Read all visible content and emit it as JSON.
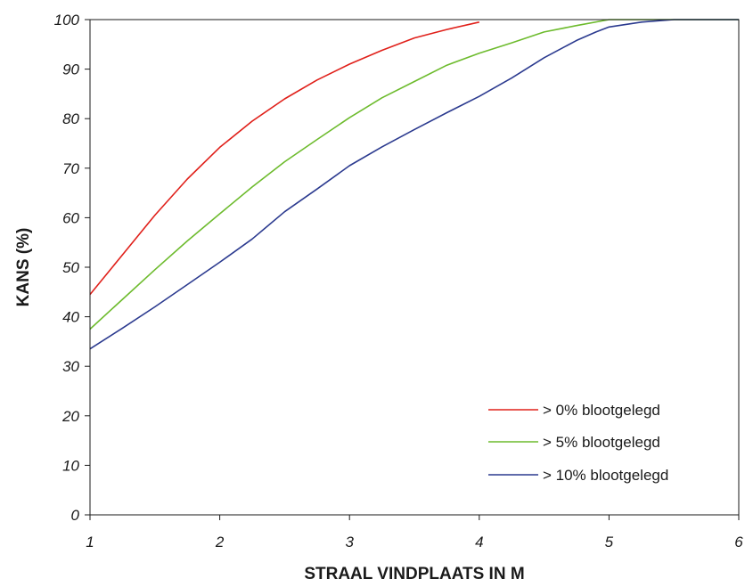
{
  "chart_data": {
    "type": "line",
    "title": "",
    "xlabel": "STRAAL VINDPLAATS IN M",
    "ylabel": "KANS (%)",
    "xlim": [
      1,
      6
    ],
    "ylim": [
      0,
      100
    ],
    "xticks": [
      1,
      2,
      3,
      4,
      5,
      6
    ],
    "yticks": [
      0,
      10,
      20,
      30,
      40,
      50,
      60,
      70,
      80,
      90,
      100
    ],
    "grid": false,
    "legend_position": "bottom-right",
    "series": [
      {
        "name": "> 0% blootgelegd",
        "color": "#e0201a",
        "points": [
          [
            1,
            44.5
          ],
          [
            1.25,
            52.5
          ],
          [
            1.5,
            60.5
          ],
          [
            1.75,
            67.8
          ],
          [
            2,
            74.2
          ],
          [
            2.25,
            79.5
          ],
          [
            2.5,
            84
          ],
          [
            2.75,
            87.8
          ],
          [
            3,
            91
          ],
          [
            3.25,
            93.8
          ],
          [
            3.5,
            96.3
          ],
          [
            3.75,
            98
          ],
          [
            4,
            99.5
          ]
        ]
      },
      {
        "name": "> 5% blootgelegd",
        "color": "#6dbb2d",
        "points": [
          [
            1,
            37.5
          ],
          [
            1.25,
            43.5
          ],
          [
            1.5,
            49.5
          ],
          [
            1.75,
            55.3
          ],
          [
            2,
            60.8
          ],
          [
            2.25,
            66.2
          ],
          [
            2.5,
            71.3
          ],
          [
            2.75,
            75.8
          ],
          [
            3,
            80.2
          ],
          [
            3.25,
            84.2
          ],
          [
            3.5,
            87.5
          ],
          [
            3.75,
            90.8
          ],
          [
            4,
            93.2
          ],
          [
            4.25,
            95.3
          ],
          [
            4.5,
            97.5
          ],
          [
            4.75,
            98.8
          ],
          [
            5,
            100
          ],
          [
            6,
            100
          ]
        ]
      },
      {
        "name": "> 10% blootgelegd",
        "color": "#2b3a8f",
        "points": [
          [
            1,
            33.5
          ],
          [
            1.25,
            37.7
          ],
          [
            1.5,
            42
          ],
          [
            1.75,
            46.5
          ],
          [
            2,
            51
          ],
          [
            2.25,
            55.7
          ],
          [
            2.5,
            61.2
          ],
          [
            2.75,
            65.8
          ],
          [
            3,
            70.5
          ],
          [
            3.25,
            74.3
          ],
          [
            3.5,
            77.8
          ],
          [
            3.75,
            81.2
          ],
          [
            4,
            84.5
          ],
          [
            4.25,
            88.2
          ],
          [
            4.5,
            92.3
          ],
          [
            4.75,
            95.8
          ],
          [
            4.9,
            97.5
          ],
          [
            5,
            98.5
          ],
          [
            5.25,
            99.5
          ],
          [
            5.5,
            100
          ],
          [
            6,
            100
          ]
        ]
      }
    ]
  }
}
